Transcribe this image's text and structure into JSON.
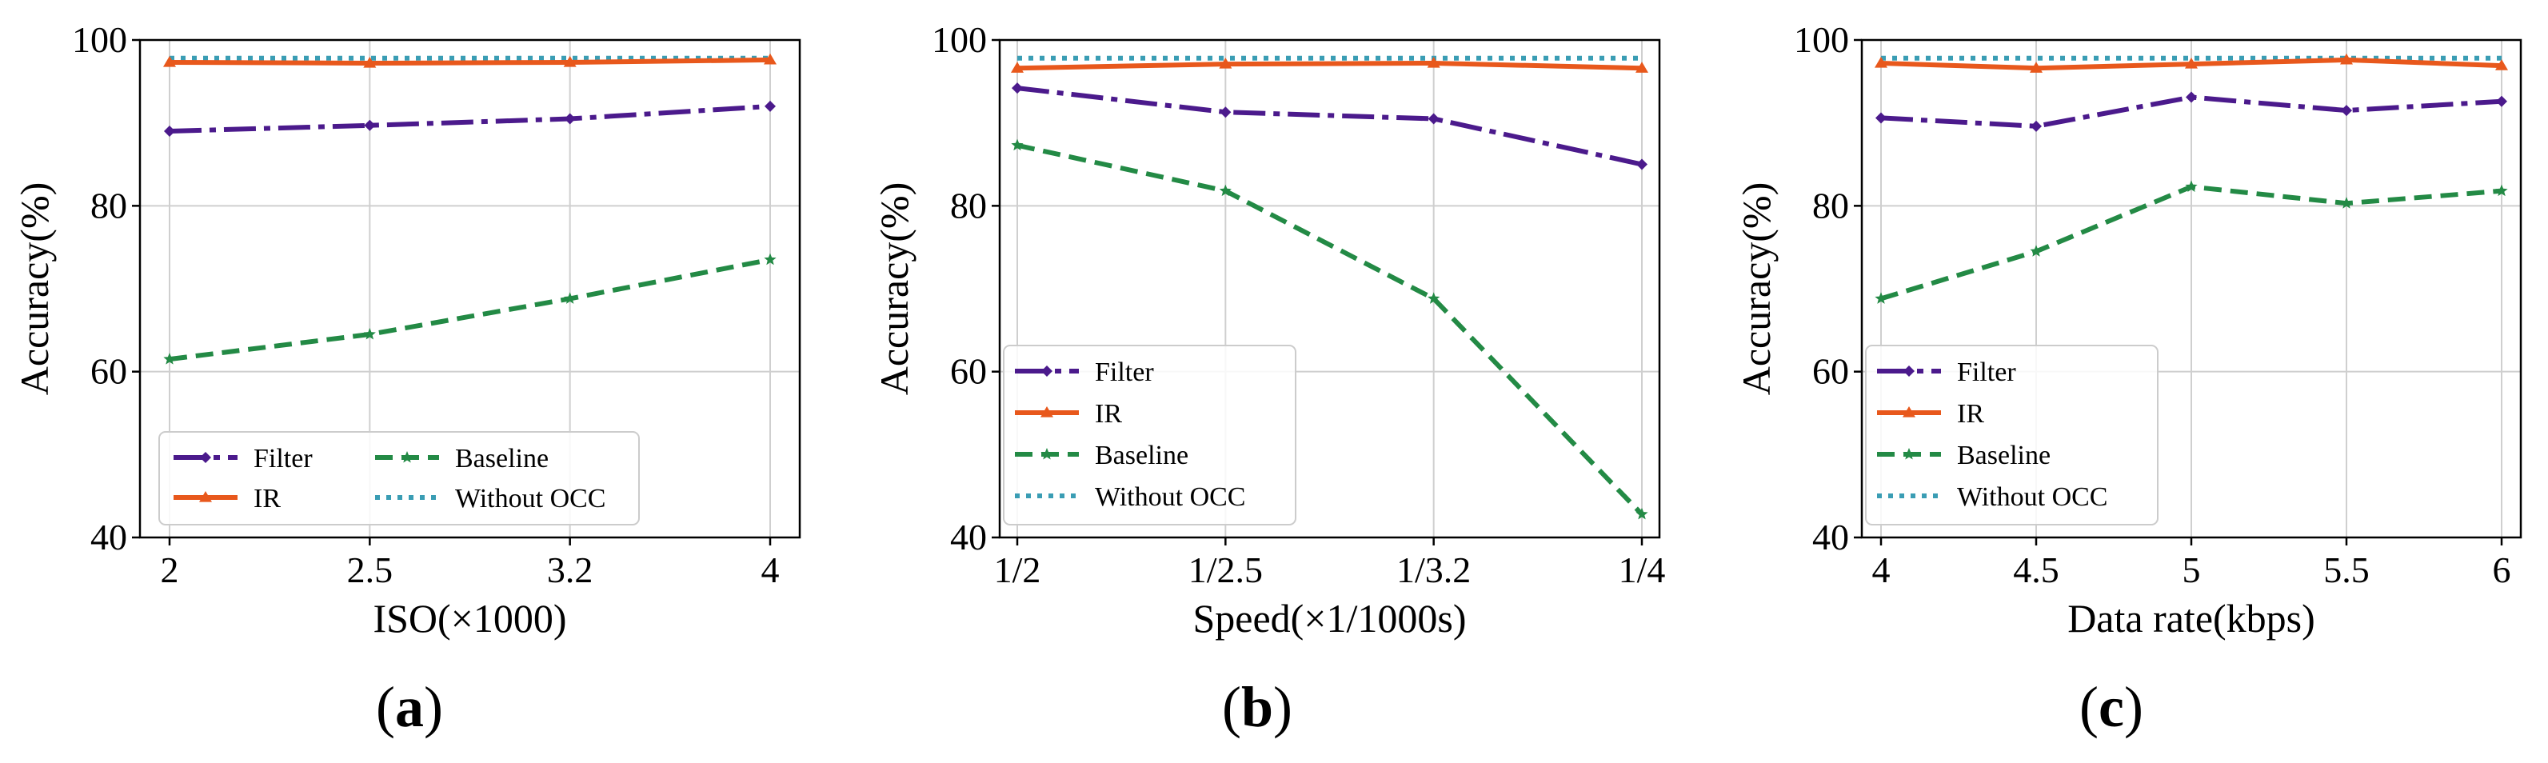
{
  "colors": {
    "Filter": "#4b1a8c",
    "IR": "#e8581c",
    "Baseline": "#238a45",
    "Without OCC": "#3a9db4"
  },
  "chart_data": [
    {
      "type": "line",
      "panel": "a",
      "caption_label": "a",
      "xlabel": "ISO(×1000)",
      "ylabel": "Accuracy(%)",
      "categories": [
        "2",
        "2.5",
        "3.2",
        "4"
      ],
      "ylim": [
        40,
        100
      ],
      "yticks": [
        "40",
        "60",
        "80",
        "100"
      ],
      "grid": true,
      "legend_position": "lower-left",
      "legend_layout": "two-column",
      "series": [
        {
          "name": "Filter",
          "values": [
            89.0,
            89.7,
            90.5,
            92.0
          ]
        },
        {
          "name": "IR",
          "values": [
            97.3,
            97.2,
            97.3,
            97.6
          ]
        },
        {
          "name": "Baseline",
          "values": [
            61.5,
            64.5,
            68.8,
            73.5
          ]
        },
        {
          "name": "Without OCC",
          "values": [
            97.8,
            97.8,
            97.8,
            97.8
          ]
        }
      ]
    },
    {
      "type": "line",
      "panel": "b",
      "caption_label": "b",
      "xlabel": "Speed(×1/1000s)",
      "ylabel": "Accuracy(%)",
      "categories": [
        "1/2",
        "1/2.5",
        "1/3.2",
        "1/4"
      ],
      "ylim": [
        40,
        100
      ],
      "yticks": [
        "40",
        "60",
        "80",
        "100"
      ],
      "grid": true,
      "legend_position": "lower-left",
      "legend_layout": "one-column",
      "series": [
        {
          "name": "Filter",
          "values": [
            94.2,
            91.3,
            90.5,
            85.0
          ]
        },
        {
          "name": "IR",
          "values": [
            96.6,
            97.1,
            97.2,
            96.6
          ]
        },
        {
          "name": "Baseline",
          "values": [
            87.3,
            81.8,
            68.8,
            42.8
          ]
        },
        {
          "name": "Without OCC",
          "values": [
            97.8,
            97.8,
            97.8,
            97.8
          ]
        }
      ]
    },
    {
      "type": "line",
      "panel": "c",
      "caption_label": "c",
      "xlabel": "Data rate(kbps)",
      "ylabel": "Accuracy(%)",
      "categories": [
        "4",
        "4.5",
        "5",
        "5.5",
        "6"
      ],
      "ylim": [
        40,
        100
      ],
      "yticks": [
        "40",
        "60",
        "80",
        "100"
      ],
      "grid": true,
      "legend_position": "lower-left",
      "legend_layout": "one-column",
      "series": [
        {
          "name": "Filter",
          "values": [
            90.6,
            89.6,
            93.1,
            91.5,
            92.6
          ]
        },
        {
          "name": "IR",
          "values": [
            97.2,
            96.6,
            97.1,
            97.6,
            96.9
          ]
        },
        {
          "name": "Baseline",
          "values": [
            68.8,
            74.5,
            82.3,
            80.3,
            81.8
          ]
        },
        {
          "name": "Without OCC",
          "values": [
            97.8,
            97.8,
            97.8,
            97.8,
            97.8
          ]
        }
      ]
    }
  ]
}
